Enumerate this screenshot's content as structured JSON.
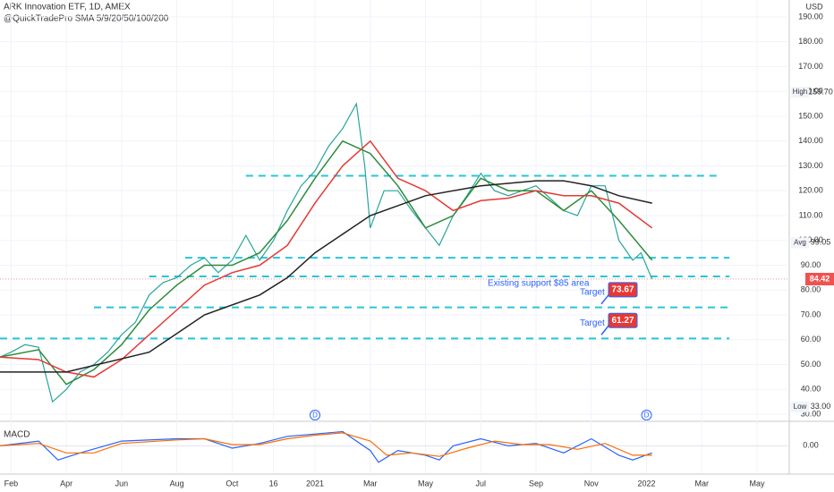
{
  "chart_data": {
    "type": "line",
    "title": "ARK Innovation ETF, 1D, AMEX",
    "subtitle": "@QuickTradePro SMA 5/9/20/50/100/200",
    "y_unit": "USD",
    "xlim": [
      0.6,
      29.1
    ],
    "xticks": [
      {
        "value": 1,
        "label": "Feb"
      },
      {
        "value": 3,
        "label": "Apr"
      },
      {
        "value": 5,
        "label": "Jun"
      },
      {
        "value": 7,
        "label": "Aug"
      },
      {
        "value": 9,
        "label": "Oct"
      },
      {
        "value": 10.5,
        "label": "16"
      },
      {
        "value": 12,
        "label": "2021"
      },
      {
        "value": 14,
        "label": "Mar"
      },
      {
        "value": 16,
        "label": "May"
      },
      {
        "value": 18,
        "label": "Jul"
      },
      {
        "value": 20,
        "label": "Sep"
      },
      {
        "value": 22,
        "label": "Nov"
      },
      {
        "value": 24,
        "label": "2022"
      },
      {
        "value": 26,
        "label": "Mar"
      },
      {
        "value": 28,
        "label": "May"
      }
    ],
    "ylim": [
      27.5,
      196.8
    ],
    "yticks": [
      {
        "value": 30,
        "label": "30.00"
      },
      {
        "value": 40,
        "label": "40.00"
      },
      {
        "value": 50,
        "label": "50.00"
      },
      {
        "value": 60,
        "label": "60.00"
      },
      {
        "value": 70,
        "label": "70.00"
      },
      {
        "value": 80,
        "label": "80.00"
      },
      {
        "value": 90,
        "label": "90.00"
      },
      {
        "value": 100,
        "label": "100.00"
      },
      {
        "value": 110,
        "label": "110.00"
      },
      {
        "value": 120,
        "label": "120.00"
      },
      {
        "value": 130,
        "label": "130.00"
      },
      {
        "value": 140,
        "label": "140.00"
      },
      {
        "value": 150,
        "label": "150.00"
      },
      {
        "value": 160,
        "label": "160.00"
      },
      {
        "value": 170,
        "label": "170.00"
      },
      {
        "value": 180,
        "label": "180.00"
      },
      {
        "value": 190,
        "label": "190.00"
      }
    ],
    "series": [
      {
        "color": "#26a69a",
        "x": [
          0.6,
          1,
          1.5,
          2,
          2.5,
          3,
          3.5,
          4,
          4.5,
          5,
          5.5,
          6,
          6.5,
          7,
          7.5,
          8,
          8.5,
          9,
          9.5,
          10,
          10.5,
          11,
          11.5,
          12,
          12.5,
          13,
          13.5,
          13.8,
          14,
          14.5,
          15,
          15.5,
          16,
          16.5,
          17,
          17.5,
          18,
          18.5,
          19,
          19.5,
          20,
          20.5,
          21,
          21.5,
          22,
          22.5,
          23,
          23.5,
          23.8,
          24.1,
          24.2
        ],
        "values": [
          53,
          55,
          58,
          57,
          35,
          40,
          47,
          50,
          55,
          62,
          67,
          78,
          83,
          85,
          90,
          93,
          87,
          92,
          102,
          92,
          100,
          112,
          122,
          128,
          138,
          145,
          155,
          130,
          105,
          120,
          120,
          112,
          105,
          98,
          110,
          118,
          127,
          120,
          118,
          120,
          122,
          117,
          112,
          110,
          122,
          122,
          100,
          92,
          95,
          87,
          84.42
        ]
      },
      {
        "color": "#2e8b3a",
        "x": [
          0.6,
          2,
          3,
          4,
          5,
          6,
          7,
          8,
          9,
          10,
          11,
          12,
          13,
          14,
          15,
          16,
          17,
          18,
          19,
          20,
          21,
          22,
          23,
          24.2
        ],
        "values": [
          53,
          56,
          42,
          48,
          58,
          72,
          82,
          90,
          90,
          95,
          108,
          125,
          140,
          135,
          122,
          105,
          110,
          125,
          120,
          120,
          112,
          120,
          108,
          92
        ]
      },
      {
        "color": "#e53935",
        "x": [
          0.6,
          2,
          3,
          4,
          5,
          6,
          7,
          8,
          9,
          10,
          11,
          12,
          13,
          14,
          15,
          16,
          17,
          18,
          19,
          20,
          21,
          22,
          23,
          24.2
        ],
        "values": [
          53,
          52,
          47,
          45,
          52,
          62,
          72,
          82,
          87,
          90,
          98,
          115,
          130,
          140,
          125,
          120,
          112,
          116,
          117,
          120,
          118,
          118,
          115,
          105
        ]
      },
      {
        "color": "#222222",
        "x": [
          0.6,
          3,
          6,
          8,
          10,
          11,
          12,
          14,
          16,
          18,
          20,
          21,
          22,
          23,
          24.2
        ],
        "values": [
          47,
          47,
          55,
          70,
          78,
          85,
          95,
          110,
          118,
          122,
          124,
          124,
          122,
          118,
          115
        ]
      }
    ],
    "level_color": "#26c6da",
    "levels": [
      {
        "value": 126,
        "xrange": [
          9.5,
          26.6
        ]
      },
      {
        "value": 93,
        "xrange": [
          7.3,
          27
        ]
      },
      {
        "value": 85.5,
        "xrange": [
          6,
          27
        ]
      },
      {
        "value": 73,
        "xrange": [
          4,
          27
        ]
      },
      {
        "value": 60.5,
        "xrange": [
          0.6,
          27
        ]
      }
    ],
    "annotation": "Existing support $85 area",
    "targets": [
      {
        "label": "Target 1",
        "value": 73.67
      },
      {
        "label": "Target 2",
        "value": 61.27
      }
    ],
    "stats": [
      {
        "label": "High",
        "value": 159.7,
        "value_label": "159.70"
      },
      {
        "label": "Avg",
        "value": 99.05
      },
      {
        "label": "Low",
        "value": 33,
        "value_label": "33.00"
      }
    ],
    "last_price": 84.42,
    "events": [
      {
        "x": 12,
        "label": "D"
      },
      {
        "x": 24,
        "label": "D"
      }
    ],
    "macd": {
      "title": "MACD",
      "ylim": [
        -12,
        10
      ],
      "yticks": [
        {
          "value": 0,
          "label": "0.00"
        }
      ],
      "series": [
        {
          "color": "#2962ff",
          "x": [
            0.6,
            2,
            2.7,
            3.5,
            5,
            7,
            8,
            9,
            10,
            11,
            12,
            13,
            14,
            14.3,
            15,
            16,
            16.5,
            17,
            18,
            19,
            20,
            21,
            22,
            23,
            23.5,
            24.2
          ],
          "values": [
            0,
            2,
            -6,
            -3,
            2,
            3,
            3,
            -1,
            1,
            4,
            5,
            6,
            -2,
            -7,
            -2,
            -4,
            -6,
            0,
            3,
            0,
            1,
            -3,
            3,
            -4,
            -6,
            -3
          ]
        },
        {
          "color": "#ff6d00",
          "x": [
            0.6,
            2,
            3,
            4,
            5,
            7,
            8,
            9,
            10,
            11,
            12,
            13,
            14,
            14.6,
            15.5,
            16.5,
            17.5,
            18.5,
            19.5,
            20.5,
            21.5,
            22.5,
            23.5,
            24.2
          ],
          "values": [
            0,
            1,
            -3,
            -3,
            1,
            2.5,
            3,
            0.5,
            0.5,
            3,
            4.5,
            5.5,
            2,
            -4,
            -3,
            -4.5,
            -1,
            2,
            0.5,
            0.5,
            -1.5,
            1,
            -4,
            -4
          ]
        }
      ]
    }
  }
}
